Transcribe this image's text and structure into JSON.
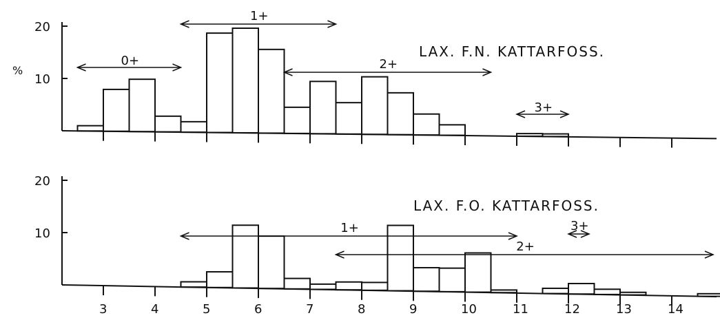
{
  "chart_data": [
    {
      "type": "bar",
      "title": "LAX. F.N. KATTARFOSS.",
      "xlabel": "",
      "ylabel": "%",
      "ylim": [
        0,
        20
      ],
      "yticks": [
        "20",
        "10"
      ],
      "xticks": [
        "3",
        "4",
        "5",
        "6",
        "7",
        "8",
        "9",
        "10",
        "11",
        "12",
        "13",
        "14"
      ],
      "bin_width": 0.5,
      "bins": [
        {
          "x": 2.75,
          "value": 1
        },
        {
          "x": 3.25,
          "value": 8
        },
        {
          "x": 3.75,
          "value": 10
        },
        {
          "x": 4.25,
          "value": 3
        },
        {
          "x": 4.75,
          "value": 2
        },
        {
          "x": 5.25,
          "value": 19
        },
        {
          "x": 5.75,
          "value": 20
        },
        {
          "x": 6.25,
          "value": 16
        },
        {
          "x": 6.75,
          "value": 5
        },
        {
          "x": 7.25,
          "value": 10
        },
        {
          "x": 7.75,
          "value": 6
        },
        {
          "x": 8.25,
          "value": 11
        },
        {
          "x": 8.75,
          "value": 8
        },
        {
          "x": 9.25,
          "value": 4
        },
        {
          "x": 9.75,
          "value": 2
        },
        {
          "x": 11.25,
          "value": 0.5
        },
        {
          "x": 11.75,
          "value": 0.5
        }
      ],
      "age_groups": [
        {
          "label": "0+",
          "from": 2.5,
          "to": 4.5
        },
        {
          "label": "1+",
          "from": 4.5,
          "to": 7.5
        },
        {
          "label": "2+",
          "from": 6.5,
          "to": 10.5
        },
        {
          "label": "3+",
          "from": 11,
          "to": 12
        }
      ]
    },
    {
      "type": "bar",
      "title": "LAX. F.O. KATTARFOSS.",
      "xlabel": "",
      "ylabel": "",
      "ylim": [
        0,
        20
      ],
      "yticks": [
        "20",
        "10"
      ],
      "xticks": [
        "3",
        "4",
        "5",
        "6",
        "7",
        "8",
        "9",
        "10",
        "11",
        "12",
        "13",
        "14"
      ],
      "bin_width": 0.5,
      "bins": [
        {
          "x": 4.75,
          "value": 1
        },
        {
          "x": 5.25,
          "value": 3
        },
        {
          "x": 5.75,
          "value": 12
        },
        {
          "x": 6.25,
          "value": 10
        },
        {
          "x": 6.75,
          "value": 2
        },
        {
          "x": 7.25,
          "value": 1
        },
        {
          "x": 7.75,
          "value": 1.5
        },
        {
          "x": 8.25,
          "value": 1.5
        },
        {
          "x": 8.75,
          "value": 12.5
        },
        {
          "x": 9.25,
          "value": 4.5
        },
        {
          "x": 9.75,
          "value": 4.5
        },
        {
          "x": 10.25,
          "value": 7.5
        },
        {
          "x": 10.75,
          "value": 0.5
        },
        {
          "x": 11.75,
          "value": 1
        },
        {
          "x": 12.25,
          "value": 2
        },
        {
          "x": 12.75,
          "value": 1
        },
        {
          "x": 13.25,
          "value": 0.5
        },
        {
          "x": 14.75,
          "value": 0.5
        }
      ],
      "age_groups": [
        {
          "label": "1+",
          "from": 4.5,
          "to": 11
        },
        {
          "label": "2+",
          "from": 7.5,
          "to": 14.8
        },
        {
          "label": "3+",
          "from": 12,
          "to": 12.4
        }
      ]
    }
  ]
}
